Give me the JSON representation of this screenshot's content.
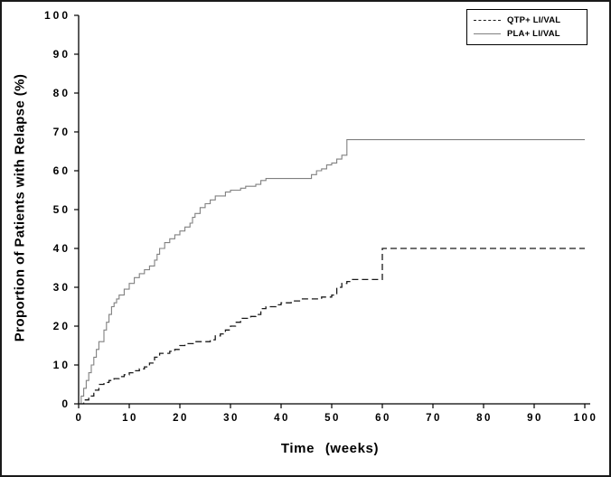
{
  "chart_data": {
    "type": "line",
    "step": true,
    "title": "",
    "xlabel": "Time (weeks)",
    "ylabel": "Proportion of Patients with Relapse (%)",
    "xlim": [
      0,
      100
    ],
    "ylim": [
      0,
      100
    ],
    "xticks": [
      0,
      10,
      20,
      30,
      40,
      50,
      60,
      70,
      80,
      90,
      100
    ],
    "yticks": [
      0,
      10,
      20,
      30,
      40,
      50,
      60,
      70,
      80,
      90,
      100
    ],
    "grid": false,
    "legend_position": "top-right",
    "axis_color": "#000000",
    "series": [
      {
        "name": "QTP+ LI/VAL",
        "style": "dashed",
        "color": "#1a1a1a",
        "points": [
          [
            0,
            0
          ],
          [
            1,
            1
          ],
          [
            2,
            2
          ],
          [
            3,
            3.5
          ],
          [
            4,
            5
          ],
          [
            5,
            5.5
          ],
          [
            6,
            6
          ],
          [
            7,
            6.5
          ],
          [
            8,
            7
          ],
          [
            9,
            7.5
          ],
          [
            10,
            8
          ],
          [
            11,
            8.5
          ],
          [
            12,
            9
          ],
          [
            13,
            9.5
          ],
          [
            14,
            10.5
          ],
          [
            15,
            12
          ],
          [
            16,
            13
          ],
          [
            18,
            13.5
          ],
          [
            19,
            14
          ],
          [
            20,
            15
          ],
          [
            21,
            15.5
          ],
          [
            23,
            16
          ],
          [
            26,
            16.5
          ],
          [
            27,
            17.5
          ],
          [
            28,
            18
          ],
          [
            29,
            19
          ],
          [
            30,
            20
          ],
          [
            31,
            21
          ],
          [
            32,
            22
          ],
          [
            34,
            22.5
          ],
          [
            35,
            23
          ],
          [
            36,
            24.5
          ],
          [
            37,
            25
          ],
          [
            39,
            25.5
          ],
          [
            40,
            26
          ],
          [
            42,
            26.5
          ],
          [
            44,
            27
          ],
          [
            48,
            27.5
          ],
          [
            50,
            28
          ],
          [
            51,
            30
          ],
          [
            52,
            31
          ],
          [
            53,
            31.5
          ],
          [
            54,
            32
          ],
          [
            60,
            40
          ],
          [
            100,
            40
          ]
        ]
      },
      {
        "name": "PLA+ LI/VAL",
        "style": "solid",
        "color": "#808080",
        "points": [
          [
            0,
            0
          ],
          [
            0.5,
            2
          ],
          [
            1,
            4
          ],
          [
            1.5,
            6
          ],
          [
            2,
            8
          ],
          [
            2.5,
            10
          ],
          [
            3,
            12
          ],
          [
            3.5,
            14
          ],
          [
            4,
            16
          ],
          [
            5,
            19
          ],
          [
            5.5,
            21
          ],
          [
            6,
            23
          ],
          [
            6.5,
            25
          ],
          [
            7,
            26
          ],
          [
            7.5,
            27
          ],
          [
            8,
            28
          ],
          [
            9,
            29.5
          ],
          [
            10,
            31
          ],
          [
            11,
            32.5
          ],
          [
            12,
            33.5
          ],
          [
            13,
            34.5
          ],
          [
            14,
            35.5
          ],
          [
            15,
            37
          ],
          [
            15.5,
            38.5
          ],
          [
            16,
            40
          ],
          [
            17,
            41.5
          ],
          [
            18,
            42.5
          ],
          [
            19,
            43.5
          ],
          [
            20,
            44.5
          ],
          [
            21,
            45.5
          ],
          [
            22,
            46.5
          ],
          [
            22.5,
            48
          ],
          [
            23,
            49
          ],
          [
            24,
            50.5
          ],
          [
            25,
            51.5
          ],
          [
            26,
            52.5
          ],
          [
            27,
            53.5
          ],
          [
            29,
            54.5
          ],
          [
            30,
            55
          ],
          [
            32,
            55.5
          ],
          [
            33,
            56
          ],
          [
            35,
            56.5
          ],
          [
            36,
            57.5
          ],
          [
            37,
            58
          ],
          [
            45,
            58
          ],
          [
            46,
            59
          ],
          [
            47,
            60
          ],
          [
            48,
            60.5
          ],
          [
            49,
            61.5
          ],
          [
            50,
            62
          ],
          [
            51,
            63
          ],
          [
            52,
            64
          ],
          [
            53,
            68
          ],
          [
            100,
            68
          ]
        ]
      }
    ]
  }
}
